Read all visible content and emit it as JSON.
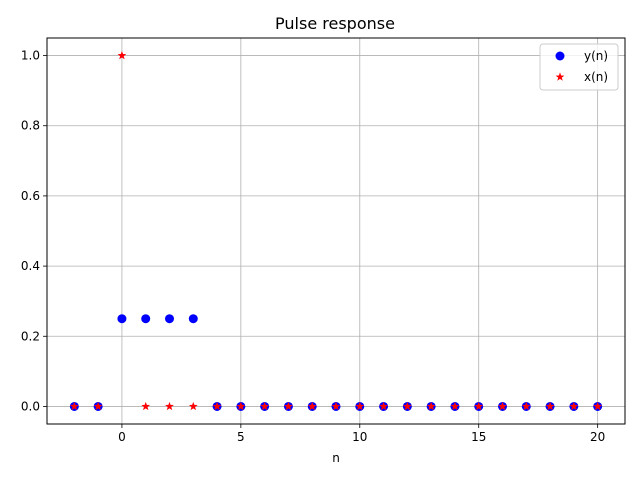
{
  "chart_data": {
    "type": "scatter",
    "title": "Pulse response",
    "xlabel": "n",
    "ylabel": "",
    "xlim": [
      -3.15,
      21.15
    ],
    "ylim": [
      -0.05,
      1.05
    ],
    "xticks": [
      0,
      5,
      10,
      15,
      20
    ],
    "yticks": [
      0.0,
      0.2,
      0.4,
      0.6,
      0.8,
      1.0
    ],
    "ytick_labels": [
      "0.0",
      "0.2",
      "0.4",
      "0.6",
      "0.8",
      "1.0"
    ],
    "grid": true,
    "legend": "top-right",
    "x": [
      -2,
      -1,
      0,
      1,
      2,
      3,
      4,
      5,
      6,
      7,
      8,
      9,
      10,
      11,
      12,
      13,
      14,
      15,
      16,
      17,
      18,
      19,
      20
    ],
    "series": [
      {
        "name": "y(n)",
        "marker": "circle",
        "color": "#0000ff",
        "values": [
          0,
          0,
          0.25,
          0.25,
          0.25,
          0.25,
          0,
          0,
          0,
          0,
          0,
          0,
          0,
          0,
          0,
          0,
          0,
          0,
          0,
          0,
          0,
          0,
          0
        ]
      },
      {
        "name": "x(n)",
        "marker": "star",
        "color": "#ff0000",
        "values": [
          0,
          0,
          1,
          0,
          0,
          0,
          0,
          0,
          0,
          0,
          0,
          0,
          0,
          0,
          0,
          0,
          0,
          0,
          0,
          0,
          0,
          0,
          0
        ]
      }
    ]
  }
}
